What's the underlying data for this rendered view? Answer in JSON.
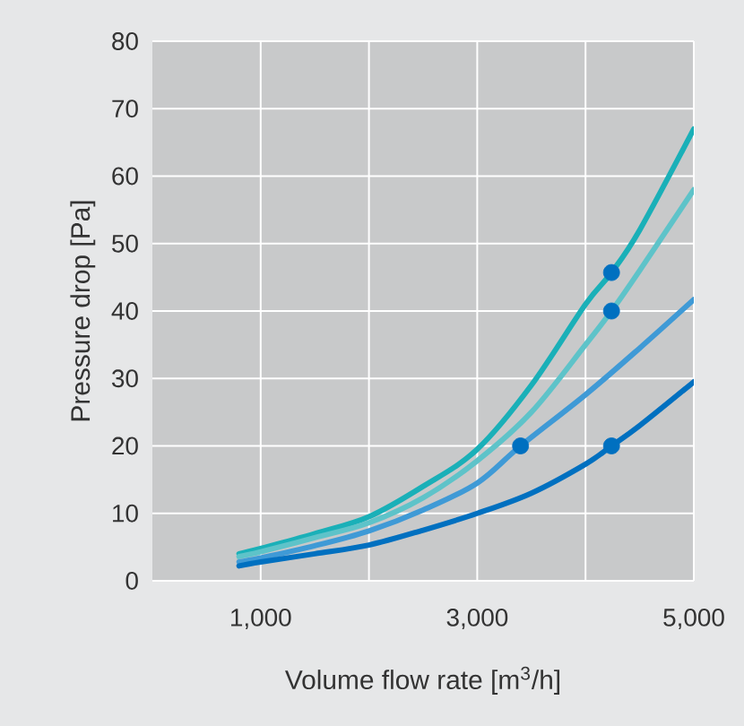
{
  "chart_data": {
    "type": "line",
    "xlabel": "Volume flow rate [m$^{3}$/h]",
    "ylabel": "Pressure drop [Pa]",
    "xlim": [
      0,
      5000
    ],
    "ylim": [
      0,
      80
    ],
    "xticks": [
      {
        "value": 1000,
        "label": "1,000"
      },
      {
        "value": 2000,
        "label": null
      },
      {
        "value": 3000,
        "label": "3,000"
      },
      {
        "value": 4000,
        "label": null
      },
      {
        "value": 5000,
        "label": "5,000"
      }
    ],
    "yticks": [
      0,
      10,
      20,
      30,
      40,
      50,
      60,
      70,
      80
    ],
    "grid": true,
    "line_style": "solid",
    "series": [
      {
        "color": "#1ab0b8",
        "x": [
          800,
          1000,
          1500,
          2000,
          2500,
          3000,
          3500,
          4000,
          4240,
          4500,
          5000
        ],
        "values": [
          4,
          4.8,
          7,
          9.5,
          14,
          19.5,
          29,
          41,
          45.7,
          52,
          67
        ]
      },
      {
        "color": "#5ec3c9",
        "x": [
          800,
          1000,
          1500,
          2000,
          2500,
          3000,
          3500,
          4000,
          4240,
          4500,
          5000
        ],
        "values": [
          3.6,
          4.3,
          6.4,
          8.6,
          12.3,
          17.8,
          25,
          35,
          40,
          46,
          58
        ]
      },
      {
        "color": "#3f9ad6",
        "x": [
          800,
          1000,
          1500,
          2000,
          2500,
          3000,
          3400,
          4000,
          4500,
          5000
        ],
        "values": [
          2.8,
          3.4,
          5.2,
          7.4,
          10.5,
          14.5,
          20,
          27.6,
          34.5,
          41.7
        ]
      },
      {
        "color": "#0070c0",
        "x": [
          800,
          1000,
          1500,
          2000,
          2500,
          3000,
          3500,
          4000,
          4240,
          4500,
          5000
        ],
        "values": [
          2.2,
          2.8,
          4,
          5.3,
          7.5,
          10,
          13,
          17.3,
          20,
          23,
          29.5
        ]
      },
      {
        "type": "scatter",
        "color": "#0070c0",
        "x": [
          4240,
          4240,
          3400,
          4240
        ],
        "values": [
          45.7,
          40,
          20,
          20
        ]
      }
    ]
  }
}
